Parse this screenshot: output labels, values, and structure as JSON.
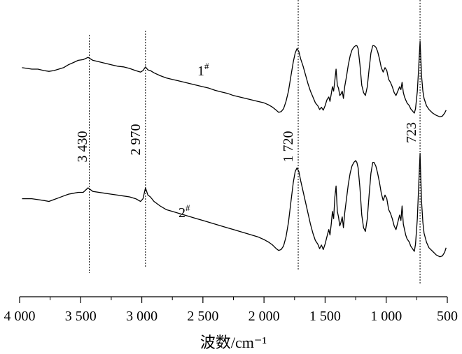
{
  "chart_data": {
    "type": "line",
    "title": "",
    "xlabel": "波数/cm⁻¹",
    "ylabel": "",
    "x_reversed": true,
    "xlim": [
      4000,
      500
    ],
    "x_ticks": [
      4000,
      3500,
      3000,
      2500,
      2000,
      1500,
      1000,
      500
    ],
    "x_tick_labels": [
      "4 000",
      "3 500",
      "3 000",
      "2 500",
      "2 000",
      "1 500",
      "1 000",
      "500"
    ],
    "grid": false,
    "peaks": [
      {
        "x": 3430,
        "label": "3 430"
      },
      {
        "x": 2970,
        "label": "2 970"
      },
      {
        "x": 1720,
        "label": "1 720"
      },
      {
        "x": 723,
        "label": "723"
      }
    ],
    "series": [
      {
        "name": "1#",
        "label_main": "1",
        "label_sup": "#",
        "points": [
          [
            3980,
            0.62
          ],
          [
            3900,
            0.6
          ],
          [
            3850,
            0.6
          ],
          [
            3800,
            0.58
          ],
          [
            3760,
            0.57
          ],
          [
            3720,
            0.58
          ],
          [
            3680,
            0.6
          ],
          [
            3640,
            0.62
          ],
          [
            3600,
            0.66
          ],
          [
            3560,
            0.69
          ],
          [
            3520,
            0.72
          ],
          [
            3480,
            0.73
          ],
          [
            3440,
            0.76
          ],
          [
            3400,
            0.72
          ],
          [
            3350,
            0.7
          ],
          [
            3300,
            0.68
          ],
          [
            3250,
            0.66
          ],
          [
            3200,
            0.64
          ],
          [
            3150,
            0.63
          ],
          [
            3100,
            0.61
          ],
          [
            3050,
            0.58
          ],
          [
            3010,
            0.56
          ],
          [
            2990,
            0.58
          ],
          [
            2970,
            0.63
          ],
          [
            2950,
            0.59
          ],
          [
            2930,
            0.58
          ],
          [
            2900,
            0.55
          ],
          [
            2850,
            0.51
          ],
          [
            2800,
            0.48
          ],
          [
            2750,
            0.46
          ],
          [
            2700,
            0.44
          ],
          [
            2650,
            0.42
          ],
          [
            2600,
            0.4
          ],
          [
            2550,
            0.38
          ],
          [
            2500,
            0.36
          ],
          [
            2450,
            0.34
          ],
          [
            2400,
            0.31
          ],
          [
            2350,
            0.29
          ],
          [
            2300,
            0.27
          ],
          [
            2250,
            0.24
          ],
          [
            2200,
            0.22
          ],
          [
            2150,
            0.2
          ],
          [
            2100,
            0.18
          ],
          [
            2050,
            0.16
          ],
          [
            2000,
            0.14
          ],
          [
            1960,
            0.11
          ],
          [
            1930,
            0.08
          ],
          [
            1900,
            0.04
          ],
          [
            1880,
            0.01
          ],
          [
            1860,
            0.02
          ],
          [
            1840,
            0.06
          ],
          [
            1820,
            0.16
          ],
          [
            1800,
            0.3
          ],
          [
            1780,
            0.5
          ],
          [
            1760,
            0.7
          ],
          [
            1745,
            0.82
          ],
          [
            1730,
            0.88
          ],
          [
            1715,
            0.84
          ],
          [
            1700,
            0.74
          ],
          [
            1680,
            0.64
          ],
          [
            1660,
            0.52
          ],
          [
            1640,
            0.4
          ],
          [
            1620,
            0.3
          ],
          [
            1600,
            0.22
          ],
          [
            1580,
            0.14
          ],
          [
            1560,
            0.1
          ],
          [
            1545,
            0.05
          ],
          [
            1530,
            0.08
          ],
          [
            1515,
            0.04
          ],
          [
            1500,
            0.1
          ],
          [
            1485,
            0.18
          ],
          [
            1470,
            0.22
          ],
          [
            1460,
            0.16
          ],
          [
            1450,
            0.26
          ],
          [
            1440,
            0.36
          ],
          [
            1430,
            0.3
          ],
          [
            1420,
            0.45
          ],
          [
            1410,
            0.6
          ],
          [
            1400,
            0.38
          ],
          [
            1390,
            0.34
          ],
          [
            1380,
            0.24
          ],
          [
            1370,
            0.26
          ],
          [
            1360,
            0.3
          ],
          [
            1350,
            0.2
          ],
          [
            1340,
            0.36
          ],
          [
            1325,
            0.5
          ],
          [
            1310,
            0.66
          ],
          [
            1295,
            0.78
          ],
          [
            1280,
            0.86
          ],
          [
            1265,
            0.9
          ],
          [
            1250,
            0.92
          ],
          [
            1240,
            0.92
          ],
          [
            1230,
            0.88
          ],
          [
            1215,
            0.66
          ],
          [
            1200,
            0.38
          ],
          [
            1185,
            0.28
          ],
          [
            1170,
            0.24
          ],
          [
            1155,
            0.36
          ],
          [
            1140,
            0.6
          ],
          [
            1125,
            0.82
          ],
          [
            1110,
            0.92
          ],
          [
            1100,
            0.92
          ],
          [
            1085,
            0.9
          ],
          [
            1070,
            0.84
          ],
          [
            1055,
            0.74
          ],
          [
            1040,
            0.62
          ],
          [
            1025,
            0.56
          ],
          [
            1010,
            0.62
          ],
          [
            995,
            0.58
          ],
          [
            980,
            0.46
          ],
          [
            965,
            0.42
          ],
          [
            950,
            0.36
          ],
          [
            935,
            0.28
          ],
          [
            920,
            0.24
          ],
          [
            905,
            0.3
          ],
          [
            890,
            0.36
          ],
          [
            880,
            0.32
          ],
          [
            870,
            0.42
          ],
          [
            860,
            0.28
          ],
          [
            850,
            0.22
          ],
          [
            840,
            0.18
          ],
          [
            830,
            0.14
          ],
          [
            820,
            0.12
          ],
          [
            810,
            0.1
          ],
          [
            800,
            0.06
          ],
          [
            790,
            0.04
          ],
          [
            780,
            0.02
          ],
          [
            770,
            0.0
          ],
          [
            760,
            0.06
          ],
          [
            745,
            0.3
          ],
          [
            735,
            0.6
          ],
          [
            728,
            0.82
          ],
          [
            723,
            0.98
          ],
          [
            718,
            0.8
          ],
          [
            710,
            0.5
          ],
          [
            700,
            0.3
          ],
          [
            690,
            0.2
          ],
          [
            670,
            0.1
          ],
          [
            650,
            0.05
          ],
          [
            620,
            0.0
          ],
          [
            590,
            -0.03
          ],
          [
            560,
            -0.05
          ],
          [
            540,
            -0.04
          ],
          [
            522,
            0.0
          ],
          [
            510,
            0.04
          ]
        ]
      },
      {
        "name": "2#",
        "label_main": "2",
        "label_sup": "#",
        "points": [
          [
            3980,
            0.58
          ],
          [
            3900,
            0.58
          ],
          [
            3850,
            0.57
          ],
          [
            3800,
            0.56
          ],
          [
            3760,
            0.55
          ],
          [
            3720,
            0.57
          ],
          [
            3680,
            0.59
          ],
          [
            3640,
            0.61
          ],
          [
            3600,
            0.63
          ],
          [
            3560,
            0.64
          ],
          [
            3520,
            0.65
          ],
          [
            3480,
            0.65
          ],
          [
            3440,
            0.7
          ],
          [
            3400,
            0.66
          ],
          [
            3350,
            0.65
          ],
          [
            3300,
            0.64
          ],
          [
            3250,
            0.63
          ],
          [
            3200,
            0.62
          ],
          [
            3150,
            0.61
          ],
          [
            3100,
            0.6
          ],
          [
            3050,
            0.58
          ],
          [
            3010,
            0.55
          ],
          [
            2990,
            0.58
          ],
          [
            2970,
            0.7
          ],
          [
            2950,
            0.62
          ],
          [
            2930,
            0.6
          ],
          [
            2900,
            0.55
          ],
          [
            2850,
            0.5
          ],
          [
            2800,
            0.46
          ],
          [
            2750,
            0.44
          ],
          [
            2700,
            0.42
          ],
          [
            2650,
            0.4
          ],
          [
            2600,
            0.38
          ],
          [
            2550,
            0.36
          ],
          [
            2500,
            0.34
          ],
          [
            2450,
            0.32
          ],
          [
            2400,
            0.3
          ],
          [
            2350,
            0.28
          ],
          [
            2300,
            0.26
          ],
          [
            2250,
            0.24
          ],
          [
            2200,
            0.22
          ],
          [
            2150,
            0.2
          ],
          [
            2100,
            0.18
          ],
          [
            2050,
            0.16
          ],
          [
            2000,
            0.13
          ],
          [
            1960,
            0.1
          ],
          [
            1930,
            0.07
          ],
          [
            1900,
            0.03
          ],
          [
            1880,
            0.01
          ],
          [
            1860,
            0.02
          ],
          [
            1840,
            0.06
          ],
          [
            1820,
            0.16
          ],
          [
            1800,
            0.32
          ],
          [
            1780,
            0.54
          ],
          [
            1760,
            0.76
          ],
          [
            1745,
            0.88
          ],
          [
            1730,
            0.92
          ],
          [
            1715,
            0.88
          ],
          [
            1700,
            0.78
          ],
          [
            1680,
            0.66
          ],
          [
            1660,
            0.54
          ],
          [
            1640,
            0.42
          ],
          [
            1620,
            0.3
          ],
          [
            1600,
            0.2
          ],
          [
            1580,
            0.12
          ],
          [
            1560,
            0.08
          ],
          [
            1545,
            0.03
          ],
          [
            1530,
            0.07
          ],
          [
            1515,
            0.02
          ],
          [
            1500,
            0.08
          ],
          [
            1485,
            0.16
          ],
          [
            1470,
            0.24
          ],
          [
            1460,
            0.18
          ],
          [
            1450,
            0.3
          ],
          [
            1440,
            0.44
          ],
          [
            1430,
            0.36
          ],
          [
            1420,
            0.6
          ],
          [
            1410,
            0.72
          ],
          [
            1400,
            0.44
          ],
          [
            1390,
            0.38
          ],
          [
            1380,
            0.28
          ],
          [
            1370,
            0.32
          ],
          [
            1360,
            0.38
          ],
          [
            1350,
            0.26
          ],
          [
            1340,
            0.42
          ],
          [
            1325,
            0.58
          ],
          [
            1310,
            0.74
          ],
          [
            1295,
            0.86
          ],
          [
            1280,
            0.94
          ],
          [
            1265,
            0.98
          ],
          [
            1250,
            1.0
          ],
          [
            1240,
            0.98
          ],
          [
            1230,
            0.92
          ],
          [
            1215,
            0.7
          ],
          [
            1200,
            0.4
          ],
          [
            1185,
            0.26
          ],
          [
            1170,
            0.22
          ],
          [
            1155,
            0.36
          ],
          [
            1140,
            0.62
          ],
          [
            1125,
            0.86
          ],
          [
            1110,
            0.98
          ],
          [
            1100,
            0.98
          ],
          [
            1085,
            0.94
          ],
          [
            1070,
            0.86
          ],
          [
            1055,
            0.76
          ],
          [
            1040,
            0.64
          ],
          [
            1025,
            0.56
          ],
          [
            1010,
            0.62
          ],
          [
            995,
            0.58
          ],
          [
            980,
            0.46
          ],
          [
            965,
            0.42
          ],
          [
            950,
            0.36
          ],
          [
            935,
            0.28
          ],
          [
            920,
            0.24
          ],
          [
            905,
            0.32
          ],
          [
            890,
            0.4
          ],
          [
            880,
            0.34
          ],
          [
            870,
            0.5
          ],
          [
            860,
            0.3
          ],
          [
            850,
            0.24
          ],
          [
            840,
            0.18
          ],
          [
            830,
            0.14
          ],
          [
            820,
            0.12
          ],
          [
            810,
            0.1
          ],
          [
            800,
            0.06
          ],
          [
            790,
            0.04
          ],
          [
            780,
            0.02
          ],
          [
            770,
            0.0
          ],
          [
            760,
            0.08
          ],
          [
            745,
            0.36
          ],
          [
            735,
            0.7
          ],
          [
            728,
            0.92
          ],
          [
            723,
            1.08
          ],
          [
            718,
            0.86
          ],
          [
            710,
            0.54
          ],
          [
            700,
            0.32
          ],
          [
            690,
            0.2
          ],
          [
            670,
            0.1
          ],
          [
            650,
            0.04
          ],
          [
            620,
            0.0
          ],
          [
            590,
            -0.04
          ],
          [
            560,
            -0.06
          ],
          [
            540,
            -0.05
          ],
          [
            522,
            -0.01
          ],
          [
            510,
            0.04
          ]
        ]
      }
    ]
  }
}
